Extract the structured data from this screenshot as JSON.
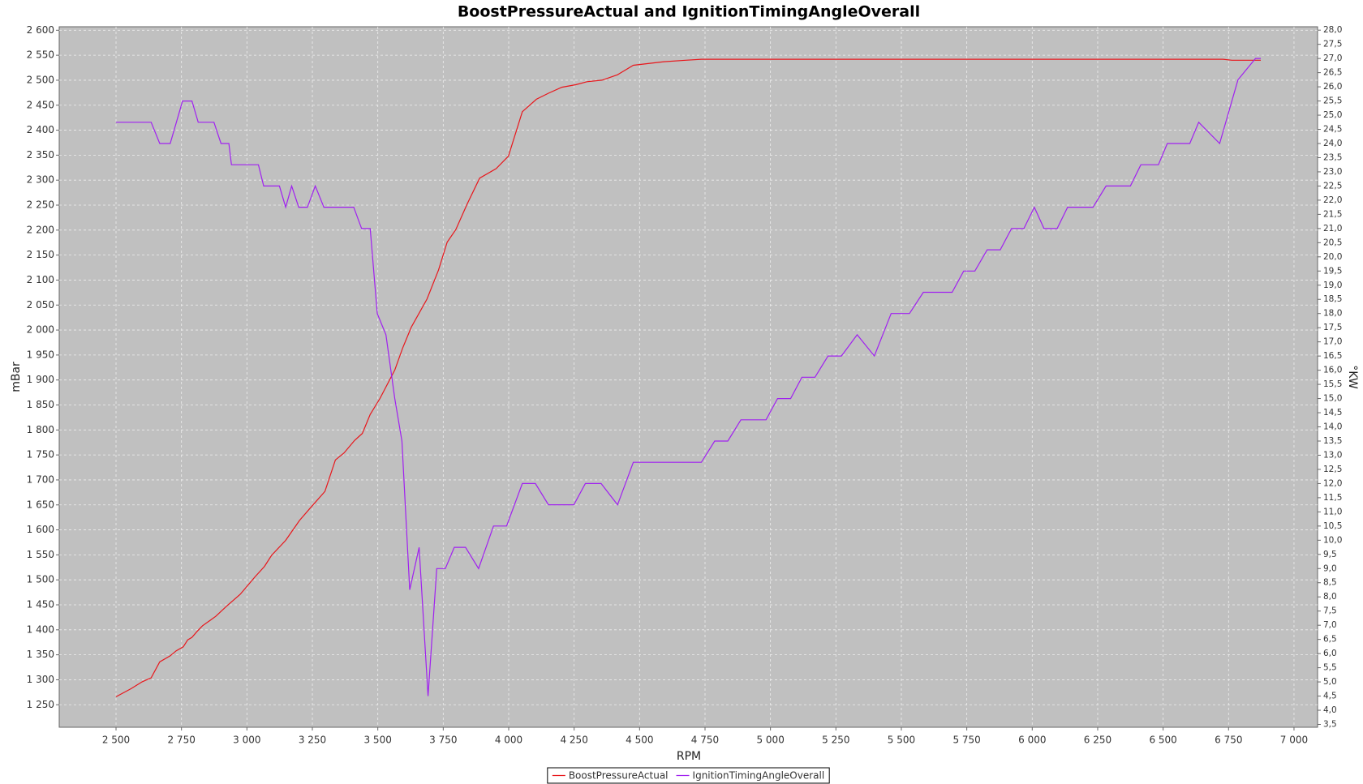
{
  "chart_data": {
    "type": "line",
    "title": "BoostPressureActual and IgnitionTimingAngleOverall",
    "x_label": "RPM",
    "y_label": "mBar",
    "y2_label": "°KW",
    "grid": true,
    "legend": "bottom",
    "xlim": [
      2283,
      7090
    ],
    "xticks": [
      {
        "value": 2500,
        "label": "2 500"
      },
      {
        "value": 2750,
        "label": "2 750"
      },
      {
        "value": 3000,
        "label": "3 000"
      },
      {
        "value": 3250,
        "label": "3 250"
      },
      {
        "value": 3500,
        "label": "3 500"
      },
      {
        "value": 3750,
        "label": "3 750"
      },
      {
        "value": 4000,
        "label": "4 000"
      },
      {
        "value": 4250,
        "label": "4 250"
      },
      {
        "value": 4500,
        "label": "4 500"
      },
      {
        "value": 4750,
        "label": "4 750"
      },
      {
        "value": 5000,
        "label": "5 000"
      },
      {
        "value": 5250,
        "label": "5 250"
      },
      {
        "value": 5500,
        "label": "5 500"
      },
      {
        "value": 5750,
        "label": "5 750"
      },
      {
        "value": 6000,
        "label": "6 000"
      },
      {
        "value": 6250,
        "label": "6 250"
      },
      {
        "value": 6500,
        "label": "6 500"
      },
      {
        "value": 6750,
        "label": "6 750"
      },
      {
        "value": 7000,
        "label": "7 000"
      }
    ],
    "ylim": [
      1205,
      2607
    ],
    "yticks": [
      {
        "value": 1250,
        "label": "1 250"
      },
      {
        "value": 1300,
        "label": "1 300"
      },
      {
        "value": 1350,
        "label": "1 350"
      },
      {
        "value": 1400,
        "label": "1 400"
      },
      {
        "value": 1450,
        "label": "1 450"
      },
      {
        "value": 1500,
        "label": "1 500"
      },
      {
        "value": 1550,
        "label": "1 550"
      },
      {
        "value": 1600,
        "label": "1 600"
      },
      {
        "value": 1650,
        "label": "1 650"
      },
      {
        "value": 1700,
        "label": "1 700"
      },
      {
        "value": 1750,
        "label": "1 750"
      },
      {
        "value": 1800,
        "label": "1 800"
      },
      {
        "value": 1850,
        "label": "1 850"
      },
      {
        "value": 1900,
        "label": "1 900"
      },
      {
        "value": 1950,
        "label": "1 950"
      },
      {
        "value": 2000,
        "label": "2 000"
      },
      {
        "value": 2050,
        "label": "2 050"
      },
      {
        "value": 2100,
        "label": "2 100"
      },
      {
        "value": 2150,
        "label": "2 150"
      },
      {
        "value": 2200,
        "label": "2 200"
      },
      {
        "value": 2250,
        "label": "2 250"
      },
      {
        "value": 2300,
        "label": "2 300"
      },
      {
        "value": 2350,
        "label": "2 350"
      },
      {
        "value": 2400,
        "label": "2 400"
      },
      {
        "value": 2450,
        "label": "2 450"
      },
      {
        "value": 2500,
        "label": "2 500"
      },
      {
        "value": 2550,
        "label": "2 550"
      },
      {
        "value": 2600,
        "label": "2 600"
      }
    ],
    "y2lim": [
      3.4,
      28.12
    ],
    "y2ticks": [
      {
        "value": 3.5,
        "label": "3,5"
      },
      {
        "value": 4,
        "label": "4,0"
      },
      {
        "value": 4.5,
        "label": "4,5"
      },
      {
        "value": 5,
        "label": "5,0"
      },
      {
        "value": 5.5,
        "label": "5,5"
      },
      {
        "value": 6,
        "label": "6,0"
      },
      {
        "value": 6.5,
        "label": "6,5"
      },
      {
        "value": 7,
        "label": "7,0"
      },
      {
        "value": 7.5,
        "label": "7,5"
      },
      {
        "value": 8,
        "label": "8,0"
      },
      {
        "value": 8.5,
        "label": "8,5"
      },
      {
        "value": 9,
        "label": "9,0"
      },
      {
        "value": 9.5,
        "label": "9,5"
      },
      {
        "value": 10,
        "label": "10,0"
      },
      {
        "value": 10.5,
        "label": "10,5"
      },
      {
        "value": 11,
        "label": "11,0"
      },
      {
        "value": 11.5,
        "label": "11,5"
      },
      {
        "value": 12,
        "label": "12,0"
      },
      {
        "value": 12.5,
        "label": "12,5"
      },
      {
        "value": 13,
        "label": "13,0"
      },
      {
        "value": 13.5,
        "label": "13,5"
      },
      {
        "value": 14,
        "label": "14,0"
      },
      {
        "value": 14.5,
        "label": "14,5"
      },
      {
        "value": 15,
        "label": "15,0"
      },
      {
        "value": 15.5,
        "label": "15,5"
      },
      {
        "value": 16,
        "label": "16,0"
      },
      {
        "value": 16.5,
        "label": "16,5"
      },
      {
        "value": 17,
        "label": "17,0"
      },
      {
        "value": 17.5,
        "label": "17,5"
      },
      {
        "value": 18,
        "label": "18,0"
      },
      {
        "value": 18.5,
        "label": "18,5"
      },
      {
        "value": 19,
        "label": "19,0"
      },
      {
        "value": 19.5,
        "label": "19,5"
      },
      {
        "value": 20,
        "label": "20,0"
      },
      {
        "value": 20.5,
        "label": "20,5"
      },
      {
        "value": 21,
        "label": "21,0"
      },
      {
        "value": 21.5,
        "label": "21,5"
      },
      {
        "value": 22,
        "label": "22,0"
      },
      {
        "value": 22.5,
        "label": "22,5"
      },
      {
        "value": 23,
        "label": "23,0"
      },
      {
        "value": 23.5,
        "label": "23,5"
      },
      {
        "value": 24,
        "label": "24,0"
      },
      {
        "value": 24.5,
        "label": "24,5"
      },
      {
        "value": 25,
        "label": "25,0"
      },
      {
        "value": 25.5,
        "label": "25,5"
      },
      {
        "value": 26,
        "label": "26,0"
      },
      {
        "value": 26.5,
        "label": "26,5"
      },
      {
        "value": 27,
        "label": "27,0"
      },
      {
        "value": 27.5,
        "label": "27,5"
      },
      {
        "value": 28,
        "label": "28,0"
      }
    ],
    "series": [
      {
        "name": "BoostPressureActual",
        "color": "#e8161b",
        "x": [
          2500,
          2557,
          2600,
          2634,
          2667,
          2707,
          2730,
          2757,
          2774,
          2790,
          2810,
          2830,
          2857,
          2881,
          2924,
          2974,
          2997,
          3031,
          3067,
          3094,
          3148,
          3201,
          3244,
          3298,
          3338,
          3371,
          3411,
          3441,
          3471,
          3508,
          3565,
          3595,
          3628,
          3688,
          3732,
          3765,
          3798,
          3842,
          3889,
          3952,
          3999,
          4052,
          4106,
          4152,
          4203,
          4256,
          4299,
          4356,
          4416,
          4476,
          4593,
          4676,
          4736,
          6729,
          6763,
          6873
        ],
        "values": [
          1266,
          1282,
          1296,
          1304,
          1336,
          1348,
          1358,
          1366,
          1380,
          1385,
          1397,
          1408,
          1418,
          1427,
          1448,
          1471,
          1485,
          1506,
          1527,
          1549,
          1579,
          1619,
          1645,
          1677,
          1740,
          1754,
          1779,
          1793,
          1831,
          1863,
          1920,
          1964,
          2006,
          2062,
          2120,
          2176,
          2201,
          2253,
          2304,
          2323,
          2348,
          2437,
          2462,
          2474,
          2486,
          2491,
          2497,
          2500,
          2511,
          2530,
          2537,
          2540,
          2542,
          2542,
          2540,
          2540
        ]
      },
      {
        "name": "IgnitionTimingAngleOverall",
        "color": "#a020f0",
        "axis": "y2",
        "x": [
          2500,
          2634,
          2667,
          2707,
          2754,
          2790,
          2814,
          2874,
          2901,
          2931,
          2941,
          3044,
          3064,
          3124,
          3148,
          3171,
          3198,
          3231,
          3261,
          3294,
          3408,
          3438,
          3471,
          3498,
          3531,
          3565,
          3592,
          3622,
          3658,
          3692,
          3725,
          3758,
          3792,
          3835,
          3885,
          3942,
          3992,
          4052,
          4102,
          4152,
          4249,
          4293,
          4353,
          4416,
          4476,
          4736,
          4787,
          4837,
          4887,
          4983,
          5027,
          5077,
          5120,
          5170,
          5220,
          5271,
          5331,
          5397,
          5461,
          5531,
          5584,
          5694,
          5738,
          5781,
          5828,
          5878,
          5921,
          5968,
          6008,
          6045,
          6095,
          6135,
          6232,
          6282,
          6375,
          6415,
          6482,
          6516,
          6602,
          6636,
          6716,
          6786,
          6853,
          6873
        ],
        "values": [
          24.75,
          24.75,
          24,
          24,
          25.5,
          25.5,
          24.75,
          24.75,
          24,
          24,
          23.25,
          23.25,
          22.5,
          22.5,
          21.75,
          22.5,
          21.75,
          21.75,
          22.5,
          21.75,
          21.75,
          21,
          21,
          18,
          17.25,
          15,
          13.5,
          8.25,
          9.75,
          4.5,
          9,
          9,
          9.75,
          9.75,
          9,
          10.5,
          10.5,
          12,
          12,
          11.25,
          11.25,
          12,
          12,
          11.25,
          12.75,
          12.75,
          13.5,
          13.5,
          14.25,
          14.25,
          15,
          15,
          15.75,
          15.75,
          16.5,
          16.5,
          17.25,
          16.5,
          18,
          18,
          18.75,
          18.75,
          19.5,
          19.5,
          20.25,
          20.25,
          21,
          21,
          21.75,
          21,
          21,
          21.75,
          21.75,
          22.5,
          22.5,
          23.25,
          23.25,
          24,
          24,
          24.75,
          24,
          26.25,
          27,
          27
        ]
      }
    ]
  }
}
